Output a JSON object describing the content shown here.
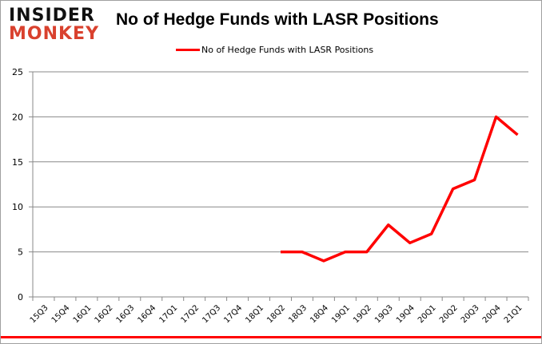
{
  "logo": {
    "line1": "INSIDER",
    "line2": "MONKEY"
  },
  "chart_data": {
    "type": "line",
    "title": "No of Hedge Funds with LASR Positions",
    "categories": [
      "15Q3",
      "15Q4",
      "16Q1",
      "16Q2",
      "16Q3",
      "16Q4",
      "17Q1",
      "17Q2",
      "17Q3",
      "17Q4",
      "18Q1",
      "18Q2",
      "18Q3",
      "18Q4",
      "19Q1",
      "19Q2",
      "19Q3",
      "19Q4",
      "20Q1",
      "20Q2",
      "20Q3",
      "20Q4",
      "21Q1"
    ],
    "series": [
      {
        "name": "No of Hedge Funds with LASR Positions",
        "color": "#ff0000",
        "values": [
          null,
          null,
          null,
          null,
          null,
          null,
          null,
          null,
          null,
          null,
          null,
          5,
          5,
          4,
          5,
          5,
          8,
          6,
          7,
          12,
          13,
          20,
          18
        ]
      }
    ],
    "ylim": [
      0,
      25
    ],
    "yticks": [
      0,
      5,
      10,
      15,
      20,
      25
    ],
    "grid": true,
    "legend": "top"
  }
}
